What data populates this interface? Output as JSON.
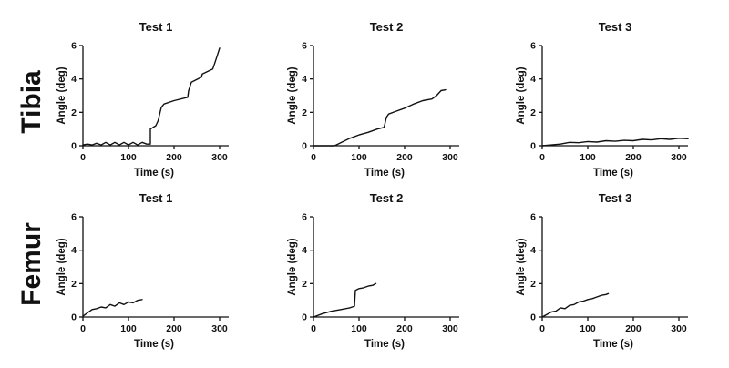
{
  "row_labels": [
    "Tibia",
    "Femur"
  ],
  "chart_data": [
    {
      "type": "line",
      "row": "Tibia",
      "title": "Test 1",
      "xlabel": "Time  (s)",
      "ylabel": "Angle (deg)",
      "xlim": [
        0,
        320
      ],
      "ylim": [
        0,
        6
      ],
      "xticks": [
        0,
        100,
        200,
        300
      ],
      "yticks": [
        0,
        2,
        4,
        6
      ],
      "grid": false,
      "series": [
        {
          "x": [
            0,
            10,
            20,
            30,
            40,
            50,
            60,
            70,
            80,
            90,
            100,
            110,
            120,
            130,
            140,
            148,
            148,
            160,
            165,
            172,
            178,
            200,
            230,
            232,
            238,
            260,
            262,
            285,
            290,
            296,
            300
          ],
          "y": [
            0.05,
            0.1,
            0.05,
            0.15,
            0.05,
            0.2,
            0.05,
            0.2,
            0.05,
            0.2,
            0.05,
            0.2,
            0.05,
            0.2,
            0.1,
            0.1,
            1.0,
            1.2,
            1.5,
            2.3,
            2.5,
            2.7,
            2.9,
            3.3,
            3.8,
            4.1,
            4.3,
            4.6,
            5.0,
            5.5,
            5.85
          ]
        }
      ]
    },
    {
      "type": "line",
      "row": "Tibia",
      "title": "Test 2",
      "xlabel": "Time  (s)",
      "ylabel": "Angle (deg)",
      "xlim": [
        0,
        320
      ],
      "ylim": [
        0,
        6
      ],
      "xticks": [
        0,
        100,
        200,
        300
      ],
      "yticks": [
        0,
        2,
        4,
        6
      ],
      "grid": false,
      "series": [
        {
          "x": [
            0,
            45,
            50,
            80,
            100,
            120,
            140,
            155,
            160,
            165,
            180,
            200,
            220,
            240,
            260,
            270,
            280,
            290
          ],
          "y": [
            0,
            0,
            0.05,
            0.45,
            0.65,
            0.8,
            1.0,
            1.1,
            1.7,
            1.9,
            2.05,
            2.25,
            2.5,
            2.7,
            2.8,
            3.0,
            3.3,
            3.35
          ]
        }
      ]
    },
    {
      "type": "line",
      "row": "Tibia",
      "title": "Test 3",
      "xlabel": "Time  (s)",
      "ylabel": "Angle (deg)",
      "xlim": [
        0,
        320
      ],
      "ylim": [
        0,
        6
      ],
      "xticks": [
        0,
        100,
        200,
        300
      ],
      "yticks": [
        0,
        2,
        4,
        6
      ],
      "grid": false,
      "series": [
        {
          "x": [
            0,
            20,
            40,
            60,
            80,
            100,
            120,
            140,
            160,
            180,
            200,
            220,
            240,
            260,
            280,
            300,
            320
          ],
          "y": [
            0.0,
            0.05,
            0.1,
            0.2,
            0.18,
            0.25,
            0.22,
            0.3,
            0.27,
            0.32,
            0.3,
            0.38,
            0.35,
            0.42,
            0.38,
            0.45,
            0.42
          ]
        }
      ]
    },
    {
      "type": "line",
      "row": "Femur",
      "title": "Test 1",
      "xlabel": "Time  (s)",
      "ylabel": "Angle (deg)",
      "xlim": [
        0,
        320
      ],
      "ylim": [
        0,
        6
      ],
      "xticks": [
        0,
        100,
        200,
        300
      ],
      "yticks": [
        0,
        2,
        4,
        6
      ],
      "grid": false,
      "series": [
        {
          "x": [
            0,
            10,
            20,
            30,
            40,
            50,
            60,
            70,
            80,
            90,
            100,
            110,
            120,
            130
          ],
          "y": [
            0.05,
            0.25,
            0.45,
            0.5,
            0.6,
            0.55,
            0.75,
            0.65,
            0.85,
            0.75,
            0.9,
            0.85,
            1.0,
            1.05
          ]
        }
      ]
    },
    {
      "type": "line",
      "row": "Femur",
      "title": "Test 2",
      "xlabel": "Time  (s)",
      "ylabel": "Angle (deg)",
      "xlim": [
        0,
        320
      ],
      "ylim": [
        0,
        6
      ],
      "xticks": [
        0,
        100,
        200,
        300
      ],
      "yticks": [
        0,
        2,
        4,
        6
      ],
      "grid": false,
      "series": [
        {
          "x": [
            0,
            20,
            40,
            60,
            80,
            90,
            92,
            100,
            110,
            120,
            130,
            137
          ],
          "y": [
            0.0,
            0.2,
            0.35,
            0.45,
            0.55,
            0.65,
            1.6,
            1.7,
            1.75,
            1.85,
            1.9,
            2.0
          ]
        }
      ]
    },
    {
      "type": "line",
      "row": "Femur",
      "title": "Test 3",
      "xlabel": "Time  (s)",
      "ylabel": "Angle (deg)",
      "xlim": [
        0,
        320
      ],
      "ylim": [
        0,
        6
      ],
      "xticks": [
        0,
        100,
        200,
        300
      ],
      "yticks": [
        0,
        2,
        4,
        6
      ],
      "grid": false,
      "series": [
        {
          "x": [
            0,
            10,
            20,
            30,
            40,
            50,
            60,
            70,
            80,
            90,
            100,
            110,
            120,
            130,
            140,
            145
          ],
          "y": [
            0.0,
            0.15,
            0.3,
            0.35,
            0.55,
            0.5,
            0.7,
            0.75,
            0.9,
            0.95,
            1.05,
            1.1,
            1.2,
            1.3,
            1.35,
            1.4
          ]
        }
      ]
    }
  ]
}
